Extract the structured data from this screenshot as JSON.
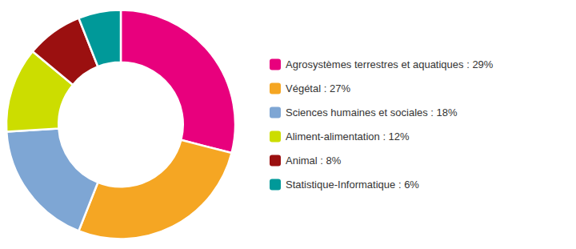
{
  "chart_data": {
    "type": "donut",
    "categories": [
      "Agrosystèmes terrestres et aquatiques : 29%",
      "Végétal : 27%",
      "Sciences humaines et sociales : 18%",
      "Aliment-alimentation : 12%",
      "Animal : 8%",
      "Statistique-Informatique : 6%"
    ],
    "values": [
      29,
      27,
      18,
      12,
      8,
      6
    ],
    "colors": [
      "#E8007D",
      "#F5A623",
      "#7EA6D4",
      "#CCDD00",
      "#9B1010",
      "#009999"
    ],
    "legend": "right"
  }
}
